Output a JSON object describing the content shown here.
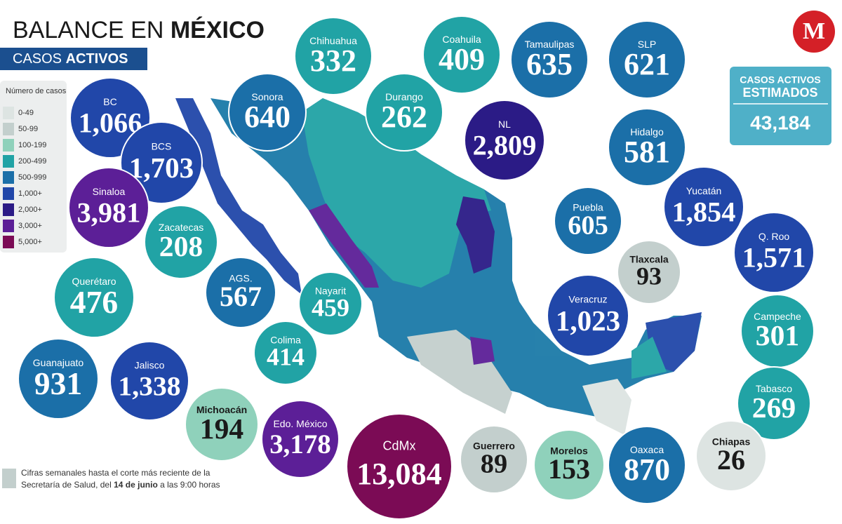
{
  "header": {
    "title_light": "BALANCE EN ",
    "title_bold": "MÉXICO",
    "subtitle_light": "CASOS ",
    "subtitle_bold": "ACTIVOS"
  },
  "legend": {
    "title": "Número de casos",
    "bins": [
      {
        "label": "0-49",
        "color": "#dde4e2"
      },
      {
        "label": "50-99",
        "color": "#c3cfcd"
      },
      {
        "label": "100-199",
        "color": "#8fd1bb"
      },
      {
        "label": "200-499",
        "color": "#21a3a5"
      },
      {
        "label": "500-999",
        "color": "#1b6fa8"
      },
      {
        "label": "1,000+",
        "color": "#2147a9"
      },
      {
        "label": "2,000+",
        "color": "#2b1b86"
      },
      {
        "label": "3,000+",
        "color": "#5c1f97"
      },
      {
        "label": "5,000+",
        "color": "#7b0b55"
      }
    ]
  },
  "total": {
    "line1": "CASOS ACTIVOS",
    "line2": "ESTIMADOS",
    "value": "43,184"
  },
  "logo": "M",
  "states": [
    {
      "name": "BC",
      "value": "1,066",
      "color": "#2147a9"
    },
    {
      "name": "BCS",
      "value": "1,703",
      "color": "#2147a9"
    },
    {
      "name": "Sonora",
      "value": "640",
      "color": "#1b6fa8"
    },
    {
      "name": "Chihuahua",
      "value": "332",
      "color": "#21a3a5"
    },
    {
      "name": "Coahuila",
      "value": "409",
      "color": "#21a3a5"
    },
    {
      "name": "Tamaulipas",
      "value": "635",
      "color": "#1b6fa8"
    },
    {
      "name": "SLP",
      "value": "621",
      "color": "#1b6fa8"
    },
    {
      "name": "Durango",
      "value": "262",
      "color": "#21a3a5"
    },
    {
      "name": "NL",
      "value": "2,809",
      "color": "#2b1b86"
    },
    {
      "name": "Hidalgo",
      "value": "581",
      "color": "#1b6fa8"
    },
    {
      "name": "Sinaloa",
      "value": "3,981",
      "color": "#5c1f97"
    },
    {
      "name": "Zacatecas",
      "value": "208",
      "color": "#21a3a5"
    },
    {
      "name": "Puebla",
      "value": "605",
      "color": "#1b6fa8"
    },
    {
      "name": "Yucatán",
      "value": "1,854",
      "color": "#2147a9"
    },
    {
      "name": "Tlaxcala",
      "value": "93",
      "color": "#c3cfcd"
    },
    {
      "name": "Q. Roo",
      "value": "1,571",
      "color": "#2147a9"
    },
    {
      "name": "Querétaro",
      "value": "476",
      "color": "#21a3a5"
    },
    {
      "name": "AGS.",
      "value": "567",
      "color": "#1b6fa8"
    },
    {
      "name": "Nayarit",
      "value": "459",
      "color": "#21a3a5"
    },
    {
      "name": "Veracruz",
      "value": "1,023",
      "color": "#2147a9"
    },
    {
      "name": "Campeche",
      "value": "301",
      "color": "#21a3a5"
    },
    {
      "name": "Colima",
      "value": "414",
      "color": "#21a3a5"
    },
    {
      "name": "Guanajuato",
      "value": "931",
      "color": "#1b6fa8"
    },
    {
      "name": "Jalisco",
      "value": "1,338",
      "color": "#2147a9"
    },
    {
      "name": "Tabasco",
      "value": "269",
      "color": "#21a3a5"
    },
    {
      "name": "Michoacán",
      "value": "194",
      "color": "#8fd1bb"
    },
    {
      "name": "Edo. México",
      "value": "3,178",
      "color": "#5c1f97"
    },
    {
      "name": "CdMx",
      "value": "13,084",
      "color": "#7b0b55"
    },
    {
      "name": "Guerrero",
      "value": "89",
      "color": "#c3cfcd"
    },
    {
      "name": "Morelos",
      "value": "153",
      "color": "#8fd1bb"
    },
    {
      "name": "Oaxaca",
      "value": "870",
      "color": "#1b6fa8"
    },
    {
      "name": "Chiapas",
      "value": "26",
      "color": "#dde4e2"
    }
  ],
  "footnote": {
    "line1": "Cifras semanales hasta el corte más reciente de la",
    "line2_a": "Secretaría de Salud, del ",
    "line2_date": "14 de junio",
    "line2_b": " a las 9:00 horas"
  }
}
